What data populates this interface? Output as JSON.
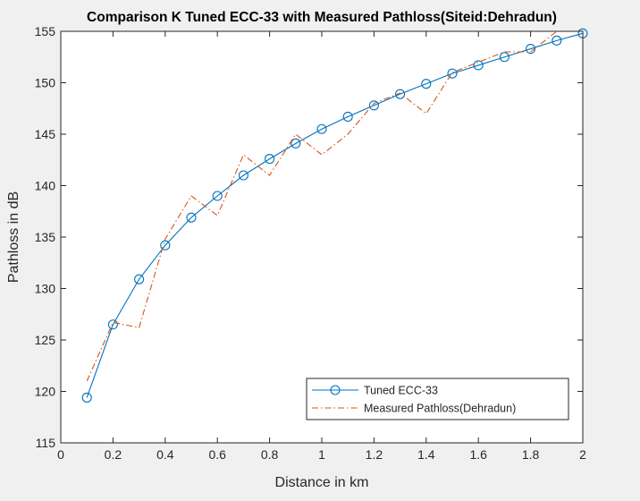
{
  "chart_data": {
    "type": "line",
    "title": "Comparison K Tuned ECC-33 with Measured Pathloss(Siteid:Dehradun)",
    "xlabel": "Distance in km",
    "ylabel": "Pathloss in dB",
    "xlim": [
      0,
      2
    ],
    "ylim": [
      115,
      155
    ],
    "xticks": [
      0,
      0.2,
      0.4,
      0.6,
      0.8,
      1,
      1.2,
      1.4,
      1.6,
      1.8,
      2
    ],
    "xtick_labels": [
      "0",
      "0.2",
      "0.4",
      "0.6",
      "0.8",
      "1",
      "1.2",
      "1.4",
      "1.6",
      "1.8",
      "2"
    ],
    "yticks": [
      115,
      120,
      125,
      130,
      135,
      140,
      145,
      150,
      155
    ],
    "ytick_labels": [
      "115",
      "120",
      "125",
      "130",
      "135",
      "140",
      "145",
      "150",
      "155"
    ],
    "grid": false,
    "legend_position": "bottom-right",
    "series": [
      {
        "name": "Tuned ECC-33",
        "color": "#0072bd",
        "style": "solid",
        "marker": "circle",
        "x": [
          0.1,
          0.2,
          0.3,
          0.4,
          0.5,
          0.6,
          0.7,
          0.8,
          0.9,
          1.0,
          1.1,
          1.2,
          1.3,
          1.4,
          1.5,
          1.6,
          1.7,
          1.8,
          1.9,
          2.0
        ],
        "y": [
          119.4,
          126.5,
          130.9,
          134.2,
          136.9,
          139.0,
          141.0,
          142.6,
          144.1,
          145.5,
          146.7,
          147.8,
          148.9,
          149.9,
          150.9,
          151.7,
          152.5,
          153.3,
          154.1,
          154.8
        ]
      },
      {
        "name": "Measured Pathloss(Dehradun)",
        "color": "#d95319",
        "style": "dashdot",
        "marker": "none",
        "x": [
          0.1,
          0.2,
          0.3,
          0.4,
          0.5,
          0.6,
          0.7,
          0.8,
          0.9,
          1.0,
          1.1,
          1.2,
          1.3,
          1.4,
          1.5,
          1.6,
          1.7,
          1.8,
          1.9,
          2.0
        ],
        "y": [
          121.0,
          126.7,
          126.2,
          134.8,
          139.0,
          137.1,
          143.0,
          141.0,
          145.0,
          143.0,
          145.0,
          148.0,
          149.0,
          147.0,
          151.0,
          152.0,
          153.0,
          153.0,
          155.0,
          155.0
        ]
      }
    ]
  }
}
